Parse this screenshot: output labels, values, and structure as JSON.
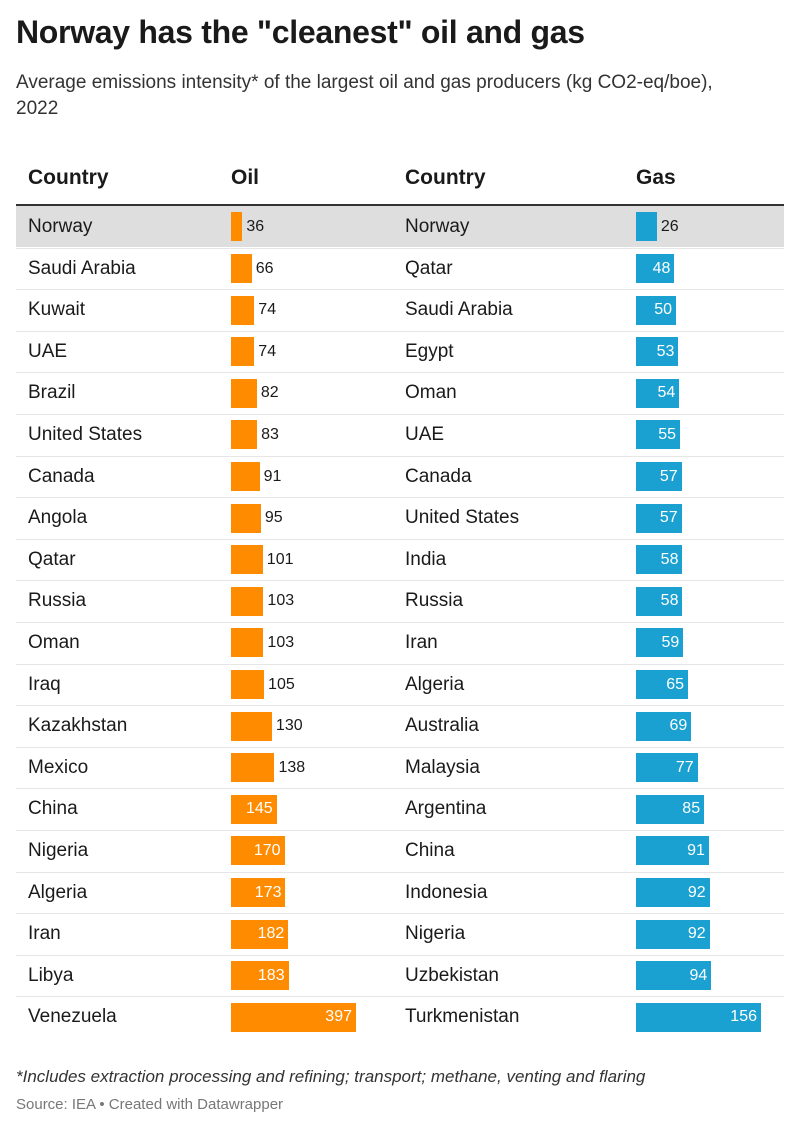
{
  "title": "Norway has the \"cleanest\" oil and gas",
  "subtitle": "Average emissions intensity* of the largest oil and gas producers (kg CO2-eq/boe), 2022",
  "headers": {
    "country_oil": "Country",
    "oil": "Oil",
    "country_gas": "Country",
    "gas": "Gas"
  },
  "colors": {
    "oil": "#ff8c00",
    "gas": "#1aa1d2",
    "highlight_row": "#dedede"
  },
  "highlighted_row": 0,
  "chart_data": {
    "type": "table",
    "oil": {
      "categories": [
        "Norway",
        "Saudi Arabia",
        "Kuwait",
        "UAE",
        "Brazil",
        "United States",
        "Canada",
        "Angola",
        "Qatar",
        "Russia",
        "Oman",
        "Iraq",
        "Kazakhstan",
        "Mexico",
        "China",
        "Nigeria",
        "Algeria",
        "Iran",
        "Libya",
        "Venezuela"
      ],
      "values": [
        36,
        66,
        74,
        74,
        82,
        83,
        91,
        95,
        101,
        103,
        103,
        105,
        130,
        138,
        145,
        170,
        173,
        182,
        183,
        397
      ]
    },
    "gas": {
      "categories": [
        "Norway",
        "Qatar",
        "Saudi Arabia",
        "Egypt",
        "Oman",
        "UAE",
        "Canada",
        "United States",
        "India",
        "Russia",
        "Iran",
        "Algeria",
        "Australia",
        "Malaysia",
        "Argentina",
        "China",
        "Indonesia",
        "Nigeria",
        "Uzbekistan",
        "Turkmenistan"
      ],
      "values": [
        26,
        48,
        50,
        53,
        54,
        55,
        57,
        57,
        58,
        58,
        59,
        65,
        69,
        77,
        85,
        91,
        92,
        92,
        94,
        156
      ]
    }
  },
  "footnote": "*Includes extraction processing and refining; transport; methane, venting and flaring",
  "source": "Source: IEA • Created with Datawrapper"
}
